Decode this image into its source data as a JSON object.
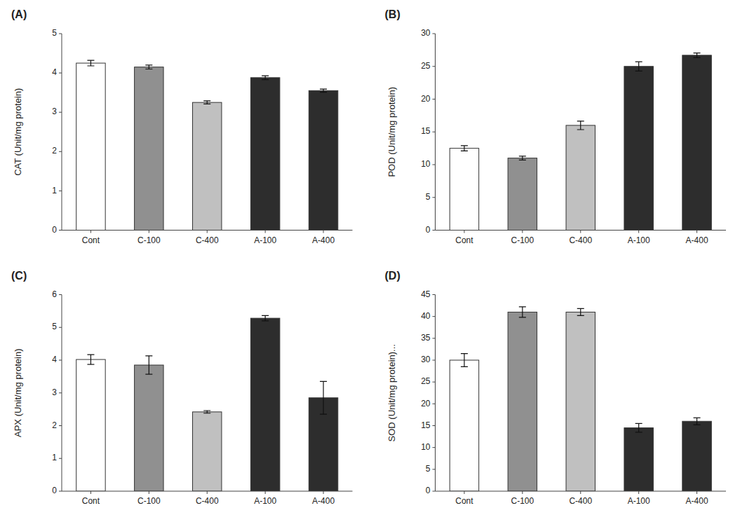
{
  "chart_data": [
    {
      "type": "bar",
      "title": "(A)",
      "ylabel": "CAT (Unit/mg protein)",
      "categories": [
        "Cont",
        "C-100",
        "C-400",
        "A-100",
        "A-400"
      ],
      "values": [
        4.25,
        4.15,
        3.25,
        3.88,
        3.55
      ],
      "errors": [
        0.07,
        0.05,
        0.04,
        0.05,
        0.04
      ],
      "colors": [
        "#ffffff",
        "#909090",
        "#c0c0c0",
        "#2d2d2d",
        "#2d2d2d"
      ],
      "ylim": [
        0,
        5
      ],
      "yticks": [
        0,
        1,
        2,
        3,
        4,
        5
      ],
      "grid": false
    },
    {
      "type": "bar",
      "title": "(B)",
      "ylabel": "POD (Unit/mg protein)",
      "categories": [
        "Cont",
        "C-100",
        "C-400",
        "A-100",
        "A-400"
      ],
      "values": [
        12.5,
        11.0,
        16.0,
        25.0,
        26.7
      ],
      "errors": [
        0.4,
        0.3,
        0.65,
        0.7,
        0.35
      ],
      "colors": [
        "#ffffff",
        "#909090",
        "#c0c0c0",
        "#2d2d2d",
        "#2d2d2d"
      ],
      "ylim": [
        0,
        30
      ],
      "yticks": [
        0,
        5,
        10,
        15,
        20,
        25,
        30
      ],
      "grid": false
    },
    {
      "type": "bar",
      "title": "(C)",
      "ylabel": "APX (Unit/mg protein)",
      "categories": [
        "Cont",
        "C-100",
        "C-400",
        "A-100",
        "A-400"
      ],
      "values": [
        4.02,
        3.85,
        2.42,
        5.28,
        2.85
      ],
      "errors": [
        0.15,
        0.28,
        0.04,
        0.08,
        0.5
      ],
      "colors": [
        "#ffffff",
        "#909090",
        "#c0c0c0",
        "#2d2d2d",
        "#2d2d2d"
      ],
      "ylim": [
        0,
        6
      ],
      "yticks": [
        0,
        1,
        2,
        3,
        4,
        5,
        6
      ],
      "grid": false
    },
    {
      "type": "bar",
      "title": "(D)",
      "ylabel": "SOD (Unit/mg protein)...",
      "categories": [
        "Cont",
        "C-100",
        "C-400",
        "A-100",
        "A-400"
      ],
      "values": [
        30.0,
        41.0,
        41.0,
        14.5,
        16.0
      ],
      "errors": [
        1.5,
        1.2,
        0.8,
        1.0,
        0.8
      ],
      "colors": [
        "#ffffff",
        "#909090",
        "#c0c0c0",
        "#2d2d2d",
        "#2d2d2d"
      ],
      "ylim": [
        0,
        45
      ],
      "yticks": [
        0,
        5,
        10,
        15,
        20,
        25,
        30,
        35,
        40,
        45
      ],
      "grid": false
    }
  ]
}
